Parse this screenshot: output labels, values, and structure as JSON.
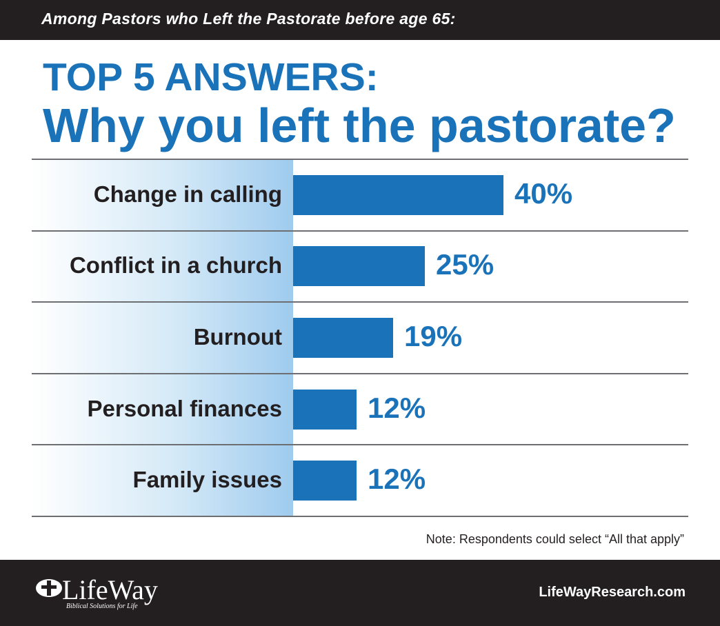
{
  "header": {
    "subtitle": "Among Pastors who Left the Pastorate before age 65:",
    "title_line1": "TOP 5 ANSWERS:",
    "title_line2": "Why you left the pastorate?"
  },
  "chart_data": {
    "type": "bar",
    "orientation": "horizontal",
    "title": "TOP 5 ANSWERS: Why you left the pastorate?",
    "subtitle": "Among Pastors who Left the Pastorate before age 65:",
    "categories": [
      "Change in calling",
      "Conflict in a church",
      "Burnout",
      "Personal finances",
      "Family issues"
    ],
    "values": [
      40,
      25,
      19,
      12,
      12
    ],
    "value_labels": [
      "40%",
      "25%",
      "19%",
      "12%",
      "12%"
    ],
    "unit": "%",
    "xlim": [
      0,
      100
    ],
    "bar_color": "#1a72b9",
    "grid": false
  },
  "footer": {
    "note": "Note: Respondents could select “All that apply”",
    "brand": "LifeWay",
    "tagline": "Biblical Solutions for Life",
    "website": "LifeWayResearch.com"
  },
  "colors": {
    "accent": "#1a72b9",
    "dark": "#231f20"
  }
}
